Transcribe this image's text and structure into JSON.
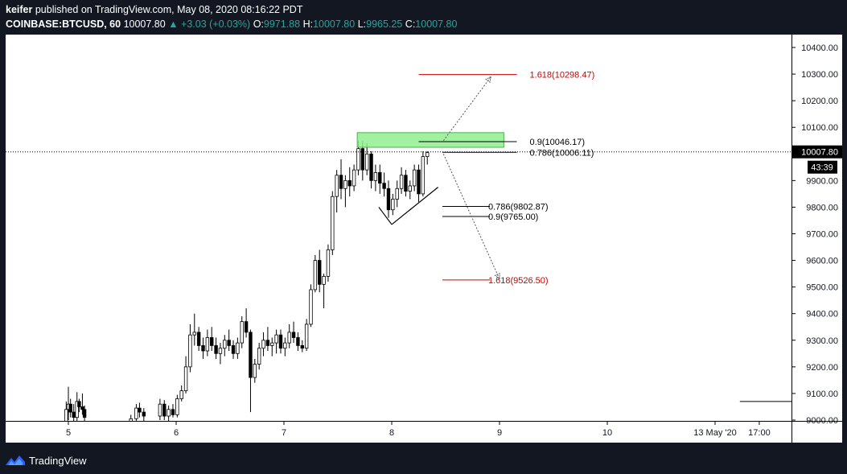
{
  "header": {
    "author": "keifer",
    "published_text": "published on TradingView.com, May 08, 2020 08:16:22 PDT",
    "symbol": "COINBASE:BTCUSD, 60",
    "last": "10007.80",
    "change": "▲ +3.03 (+0.03%)",
    "o_label": "O:",
    "o_value": "9971.88",
    "h_label": "H:",
    "h_value": "10007.80",
    "l_label": "L:",
    "l_value": "9965.25",
    "c_label": "C:",
    "c_value": "10007.80"
  },
  "footer": {
    "brand": "TradingView"
  },
  "colors": {
    "accent_red": "#cc0000",
    "zone_green": "#90ee90",
    "up_teal": "#26a69a",
    "brand_blue": "#2962ff"
  },
  "chart_data": {
    "type": "candlestick",
    "ylim": [
      9000,
      10450
    ],
    "xlim": [
      4.54,
      11.68
    ],
    "price_ticks": [
      "10400.00",
      "10300.00",
      "10200.00",
      "10100.00",
      "10000.00",
      "9900.00",
      "9800.00",
      "9700.00",
      "9600.00",
      "9500.00",
      "9400.00",
      "9300.00",
      "9200.00",
      "9100.00",
      "9000.00"
    ],
    "time_ticks": [
      {
        "x": 5,
        "label": "5"
      },
      {
        "x": 6,
        "label": "6"
      },
      {
        "x": 7,
        "label": "7"
      },
      {
        "x": 8,
        "label": "8"
      },
      {
        "x": 9,
        "label": "9"
      },
      {
        "x": 10,
        "label": "10"
      },
      {
        "x": 11.0,
        "label": "13 May '20"
      },
      {
        "x": 11.41,
        "label": "17:00"
      }
    ],
    "last_price": {
      "value": 10007.8,
      "label": "10007.80",
      "countdown": "43:39"
    },
    "candles": [
      [
        4.98,
        8990,
        9070,
        8970,
        9040
      ],
      [
        5.0,
        9040,
        9125,
        9000,
        9060
      ],
      [
        5.02,
        9060,
        9080,
        9010,
        9030
      ],
      [
        5.05,
        9030,
        9060,
        8990,
        9010
      ],
      [
        5.08,
        9010,
        9105,
        8990,
        9070
      ],
      [
        5.1,
        9070,
        9080,
        9030,
        9050
      ],
      [
        5.13,
        9050,
        9100,
        9020,
        9040
      ],
      [
        5.15,
        9040,
        9055,
        8990,
        9010
      ],
      [
        5.58,
        8990,
        9020,
        8975,
        9005
      ],
      [
        5.63,
        9005,
        9060,
        8995,
        9045
      ],
      [
        5.66,
        9045,
        9065,
        9010,
        9030
      ],
      [
        5.7,
        9030,
        9045,
        8995,
        9015
      ],
      [
        5.85,
        9015,
        9080,
        9000,
        9060
      ],
      [
        5.89,
        9060,
        9075,
        9000,
        9015
      ],
      [
        5.93,
        9015,
        9055,
        8995,
        9040
      ],
      [
        5.97,
        9040,
        9060,
        9010,
        9020
      ],
      [
        6.01,
        9020,
        9095,
        9010,
        9080
      ],
      [
        6.05,
        9080,
        9130,
        9070,
        9110
      ],
      [
        6.09,
        9110,
        9240,
        9100,
        9200
      ],
      [
        6.13,
        9200,
        9360,
        9180,
        9320
      ],
      [
        6.17,
        9320,
        9400,
        9280,
        9330
      ],
      [
        6.21,
        9330,
        9350,
        9260,
        9280
      ],
      [
        6.25,
        9280,
        9310,
        9230,
        9260
      ],
      [
        6.29,
        9260,
        9340,
        9240,
        9310
      ],
      [
        6.33,
        9310,
        9350,
        9260,
        9280
      ],
      [
        6.37,
        9280,
        9310,
        9230,
        9250
      ],
      [
        6.41,
        9250,
        9290,
        9210,
        9270
      ],
      [
        6.45,
        9270,
        9320,
        9240,
        9300
      ],
      [
        6.49,
        9300,
        9340,
        9260,
        9280
      ],
      [
        6.53,
        9280,
        9300,
        9230,
        9250
      ],
      [
        6.57,
        9250,
        9310,
        9230,
        9290
      ],
      [
        6.61,
        9290,
        9390,
        9270,
        9370
      ],
      [
        6.65,
        9370,
        9420,
        9310,
        9330
      ],
      [
        6.69,
        9330,
        9340,
        9030,
        9160
      ],
      [
        6.73,
        9160,
        9230,
        9140,
        9210
      ],
      [
        6.77,
        9210,
        9290,
        9190,
        9270
      ],
      [
        6.81,
        9270,
        9330,
        9240,
        9300
      ],
      [
        6.85,
        9300,
        9350,
        9260,
        9280
      ],
      [
        6.89,
        9280,
        9310,
        9240,
        9290
      ],
      [
        6.93,
        9290,
        9340,
        9250,
        9320
      ],
      [
        6.97,
        9320,
        9340,
        9250,
        9270
      ],
      [
        7.01,
        9270,
        9310,
        9240,
        9290
      ],
      [
        7.05,
        9290,
        9360,
        9270,
        9330
      ],
      [
        7.09,
        9330,
        9370,
        9290,
        9310
      ],
      [
        7.13,
        9310,
        9330,
        9260,
        9280
      ],
      [
        7.17,
        9280,
        9300,
        9255,
        9270
      ],
      [
        7.21,
        9270,
        9380,
        9260,
        9360
      ],
      [
        7.25,
        9360,
        9510,
        9350,
        9490
      ],
      [
        7.29,
        9490,
        9620,
        9480,
        9600
      ],
      [
        7.33,
        9600,
        9640,
        9480,
        9510
      ],
      [
        7.37,
        9510,
        9550,
        9420,
        9540
      ],
      [
        7.41,
        9540,
        9660,
        9520,
        9640
      ],
      [
        7.45,
        9640,
        9860,
        9620,
        9840
      ],
      [
        7.49,
        9840,
        9940,
        9780,
        9920
      ],
      [
        7.53,
        9920,
        9980,
        9830,
        9870
      ],
      [
        7.57,
        9870,
        9920,
        9800,
        9900
      ],
      [
        7.61,
        9900,
        9950,
        9840,
        9880
      ],
      [
        7.65,
        9880,
        9960,
        9860,
        9940
      ],
      [
        7.69,
        9940,
        10050,
        9920,
        10020
      ],
      [
        7.73,
        10020,
        10050,
        9900,
        9940
      ],
      [
        7.77,
        9940,
        10040,
        9920,
        10000
      ],
      [
        7.81,
        10000,
        10010,
        9870,
        9900
      ],
      [
        7.85,
        9900,
        9960,
        9860,
        9930
      ],
      [
        7.89,
        9930,
        9960,
        9850,
        9890
      ],
      [
        7.93,
        9890,
        9930,
        9840,
        9870
      ],
      [
        7.97,
        9870,
        9900,
        9760,
        9790
      ],
      [
        8.01,
        9790,
        9850,
        9770,
        9830
      ],
      [
        8.05,
        9830,
        9900,
        9800,
        9870
      ],
      [
        8.09,
        9870,
        9950,
        9850,
        9920
      ],
      [
        8.13,
        9920,
        9940,
        9840,
        9860
      ],
      [
        8.17,
        9860,
        9900,
        9830,
        9880
      ],
      [
        8.21,
        9880,
        9960,
        9860,
        9940
      ],
      [
        8.25,
        9940,
        9960,
        9820,
        9850
      ],
      [
        8.29,
        9850,
        10010,
        9840,
        9990
      ],
      [
        8.33,
        9990,
        10010,
        9960,
        10005
      ]
    ],
    "fib_levels": [
      {
        "price": 10298.47,
        "label": "1.618(10298.47)",
        "x1": 8.25,
        "x2": 9.25,
        "color": "#cc0000"
      },
      {
        "price": 10046.17,
        "label": "0.9(10046.17)",
        "x1": 8.25,
        "x2": 9.25,
        "color": "#000000"
      },
      {
        "price": 10006.11,
        "label": "0.786(10006.11)",
        "x1": 8.47,
        "x2": 9.25,
        "color": "#000000"
      },
      {
        "price": 9802.87,
        "label": "0.786(9802.87)",
        "x1": 8.47,
        "x2": 9.0,
        "color": "#000000"
      },
      {
        "price": 9765.0,
        "label": "0.9(9765.00)",
        "x1": 8.47,
        "x2": 9.0,
        "color": "#000000"
      },
      {
        "price": 9526.5,
        "label": "1.618(9526.50)",
        "x1": 8.47,
        "x2": 9.0,
        "color": "#cc0000"
      }
    ],
    "zone": {
      "x1": 7.68,
      "x2": 9.04,
      "y_top": 10080,
      "y_bottom": 10025
    },
    "triangle": [
      [
        8.0,
        9735
      ],
      [
        8.43,
        9875
      ],
      [
        8.0,
        9735
      ],
      [
        7.88,
        9800
      ]
    ],
    "arrows": [
      {
        "from": [
          8.48,
          10050
        ],
        "to": [
          8.92,
          10290
        ]
      },
      {
        "from": [
          8.48,
          10000
        ],
        "to": [
          9.0,
          9530
        ]
      }
    ],
    "ref_line": {
      "price": 9070,
      "x1": 11.23,
      "x2": 12.2
    }
  }
}
